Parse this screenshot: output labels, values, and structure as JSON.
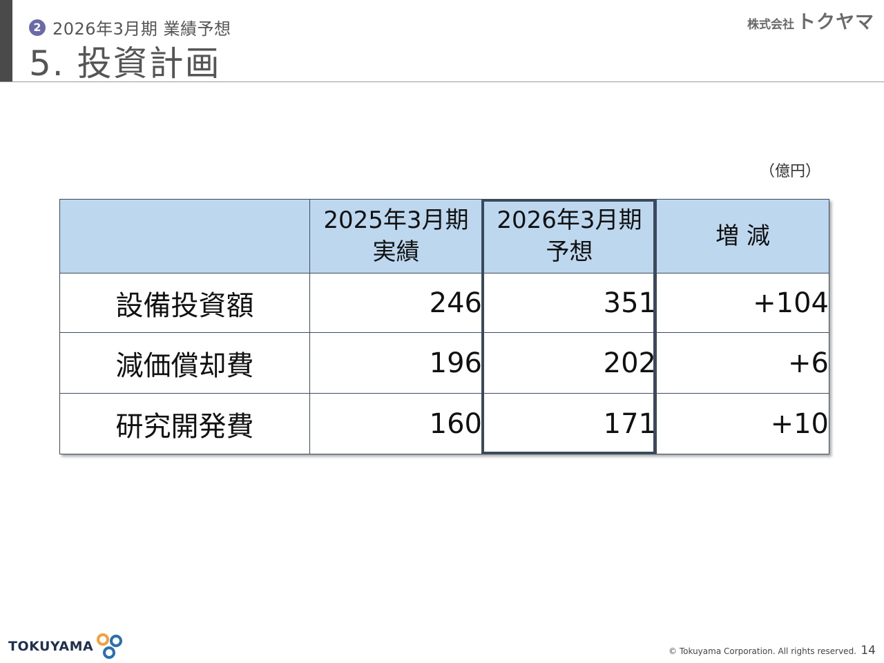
{
  "header": {
    "section_number": "2",
    "section_title": "2026年3月期 業績予想",
    "page_title": "5. 投資計画",
    "company_prefix": "株式会社",
    "company_name": "トクヤマ"
  },
  "unit_label": "（億円）",
  "table": {
    "headers": [
      {
        "line1": "",
        "line2": ""
      },
      {
        "line1": "2025年3月期",
        "line2": "実績"
      },
      {
        "line1": "2026年3月期",
        "line2": "予想"
      },
      {
        "line1": "増 減",
        "line2": ""
      }
    ],
    "rows": [
      {
        "label": "設備投資額",
        "actual": "246",
        "forecast": "351",
        "change": "+104"
      },
      {
        "label": "減価償却費",
        "actual": "196",
        "forecast": "202",
        "change": "+6"
      },
      {
        "label": "研究開発費",
        "actual": "160",
        "forecast": "171",
        "change": "+10"
      }
    ]
  },
  "footer": {
    "logo_text": "TOKUYAMA",
    "copyright": "© Tokuyama Corporation. All rights reserved.",
    "page_number": "14"
  },
  "colors": {
    "header_fill": "#bdd7ee",
    "badge": "#6a6aa8",
    "logo_orange": "#f0a040",
    "logo_blue": "#2a6fb0",
    "logo_navy": "#1e2f4f"
  }
}
